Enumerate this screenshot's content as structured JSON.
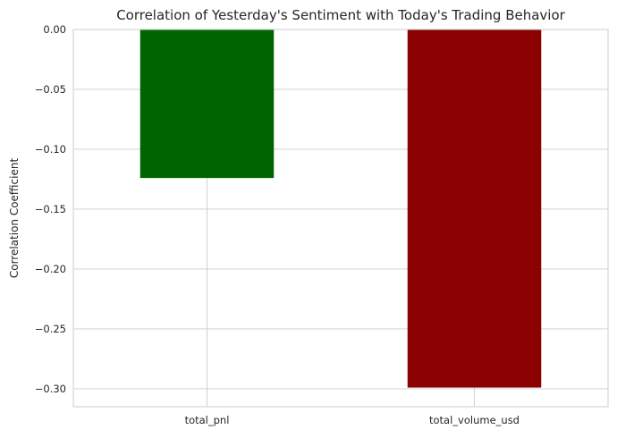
{
  "chart_data": {
    "type": "bar",
    "title": "Correlation of Yesterday's Sentiment with Today's Trading Behavior",
    "xlabel": "",
    "ylabel": "Correlation Coefficient",
    "categories": [
      "total_pnl",
      "total_volume_usd"
    ],
    "values": [
      -0.124,
      -0.299
    ],
    "bar_colors": [
      "#006400",
      "#8b0000"
    ],
    "ylim": [
      -0.315,
      0.0
    ],
    "yticks": [
      0.0,
      -0.05,
      -0.1,
      -0.15,
      -0.2,
      -0.25,
      -0.3
    ],
    "ytick_labels": [
      "0.00",
      "−0.05",
      "−0.10",
      "−0.15",
      "−0.20",
      "−0.25",
      "−0.30"
    ],
    "grid": true,
    "legend": false
  }
}
